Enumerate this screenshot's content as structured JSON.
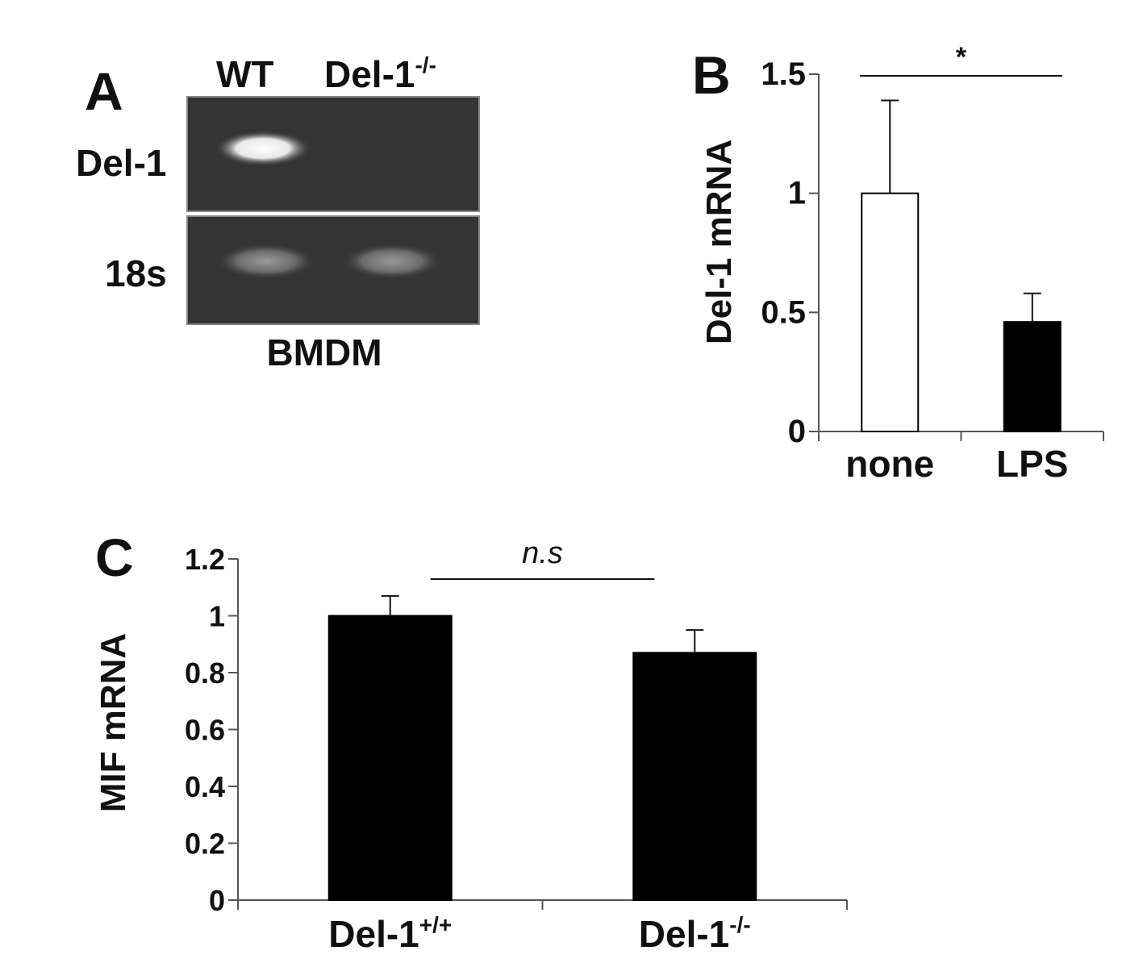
{
  "panel_a": {
    "letter": "A",
    "lane_labels": [
      "WT",
      "Del-1",
      "-/-"
    ],
    "row_labels": [
      "Del-1",
      "18s"
    ],
    "caption": "BMDM"
  },
  "chart_data": [
    {
      "panel": "B",
      "type": "bar",
      "categories": [
        "none",
        "LPS"
      ],
      "values": [
        1.0,
        0.46
      ],
      "error": [
        0.39,
        0.12
      ],
      "bar_colors": [
        "#ffffff",
        "#000000"
      ],
      "ylabel": "Del-1 mRNA",
      "ylim": [
        0,
        1.5
      ],
      "yticks": [
        "0",
        "0.5",
        "1",
        "1.5"
      ],
      "significance": "*",
      "grid": false,
      "legend": "none"
    },
    {
      "panel": "C",
      "type": "bar",
      "categories": [
        "Del-1",
        "Del-1"
      ],
      "category_superscripts": [
        "+/+",
        "-/-"
      ],
      "values": [
        1.0,
        0.87
      ],
      "error": [
        0.07,
        0.08
      ],
      "bar_colors": [
        "#000000",
        "#000000"
      ],
      "ylabel": "MIF mRNA",
      "ylim": [
        0,
        1.2
      ],
      "yticks": [
        "0",
        "0.2",
        "0.4",
        "0.6",
        "0.8",
        "1",
        "1.2"
      ],
      "significance": "n.s",
      "grid": false,
      "legend": "none"
    }
  ]
}
